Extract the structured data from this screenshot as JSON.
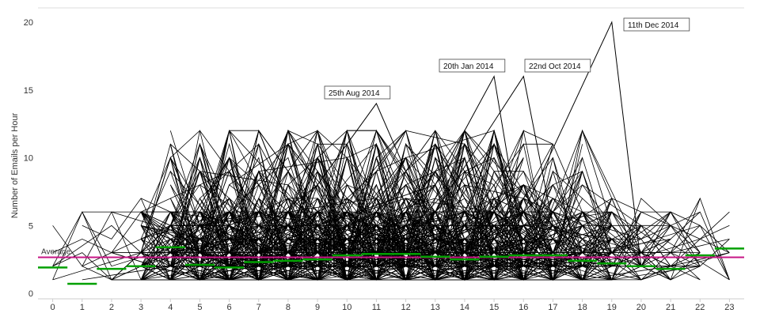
{
  "chart_data": {
    "type": "line",
    "ylabel": "Number of Emails per Hour",
    "ylim": [
      0,
      20
    ],
    "yticks": [
      0,
      5,
      10,
      15,
      20
    ],
    "xlim": [
      -0.5,
      23.5
    ],
    "x": [
      0,
      1,
      2,
      3,
      4,
      5,
      6,
      7,
      8,
      9,
      10,
      11,
      12,
      13,
      14,
      15,
      16,
      17,
      18,
      19,
      20,
      21,
      22,
      23
    ],
    "grid": false,
    "colors": {
      "lines": "#000000",
      "average": "#c71585",
      "hourly_average": "#00a000",
      "axis": "#cccccc",
      "text": "#333333"
    },
    "average": {
      "label": "Average",
      "value": 2.65
    },
    "hourly_average": [
      1.9,
      0.7,
      1.8,
      2.0,
      3.4,
      2.1,
      1.9,
      2.3,
      2.4,
      2.5,
      2.8,
      2.9,
      2.9,
      2.7,
      2.5,
      2.7,
      2.8,
      2.8,
      2.4,
      2.2,
      2.0,
      1.8,
      2.8,
      3.3
    ],
    "annotations": [
      {
        "text": "25th Aug 2014",
        "x": 11,
        "y": 14
      },
      {
        "text": "20th Jan 2014",
        "x": 15,
        "y": 16
      },
      {
        "text": "22nd Oct 2014",
        "x": 16,
        "y": 16
      },
      {
        "text": "11th Dec 2014",
        "x": 19,
        "y": 20
      }
    ],
    "highlight_series": [
      {
        "points": [
          [
            4,
            3
          ],
          [
            8,
            5
          ],
          [
            11,
            14
          ],
          [
            13,
            4
          ],
          [
            17,
            2
          ]
        ]
      },
      {
        "points": [
          [
            9,
            5
          ],
          [
            13,
            8
          ],
          [
            15,
            16
          ],
          [
            16,
            3
          ],
          [
            18,
            2
          ]
        ]
      },
      {
        "points": [
          [
            10,
            4
          ],
          [
            13,
            6
          ],
          [
            16,
            16
          ],
          [
            17,
            5
          ],
          [
            19,
            3
          ]
        ]
      },
      {
        "points": [
          [
            12,
            3
          ],
          [
            16,
            6
          ],
          [
            19,
            20
          ],
          [
            20,
            2
          ],
          [
            21,
            1
          ]
        ]
      }
    ],
    "series_count": 300,
    "min_value": 1,
    "max_background_value": 12
  }
}
